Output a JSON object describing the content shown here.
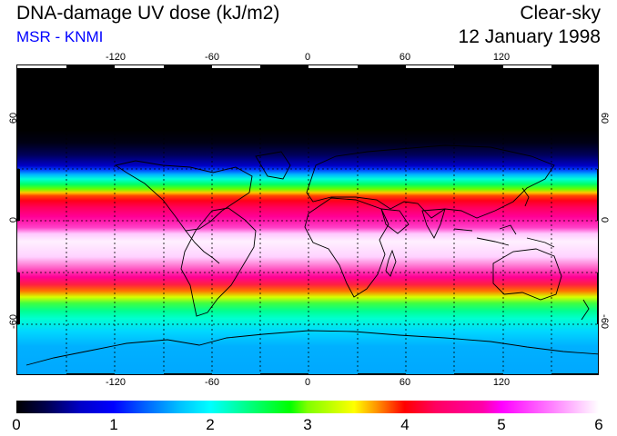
{
  "header": {
    "title": "DNA-damage UV dose (kJ/m2)",
    "source": "MSR - KNMI",
    "condition": "Clear-sky",
    "date": "12 January 1998"
  },
  "map": {
    "lon_ticks": [
      "-120",
      "-60",
      "0",
      "60",
      "120"
    ],
    "lat_ticks_left": [
      "60",
      "0",
      "-60"
    ],
    "lat_ticks_right": [
      "60",
      "0",
      "-60"
    ]
  },
  "colorbar": {
    "labels": [
      "0",
      "1",
      "2",
      "3",
      "4",
      "5",
      "6"
    ],
    "min": 0,
    "max": 6
  },
  "colors": {
    "subtitle": "#0000ff"
  }
}
